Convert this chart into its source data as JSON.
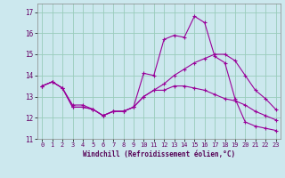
{
  "xlabel": "Windchill (Refroidissement éolien,°C)",
  "background_color": "#cce8ee",
  "grid_color": "#99ccbb",
  "line_color": "#990099",
  "ylim": [
    11,
    17.4
  ],
  "xlim": [
    -0.5,
    23.5
  ],
  "yticks": [
    11,
    12,
    13,
    14,
    15,
    16,
    17
  ],
  "xticks": [
    0,
    1,
    2,
    3,
    4,
    5,
    6,
    7,
    8,
    9,
    10,
    11,
    12,
    13,
    14,
    15,
    16,
    17,
    18,
    19,
    20,
    21,
    22,
    23
  ],
  "x": [
    0,
    1,
    2,
    3,
    4,
    5,
    6,
    7,
    8,
    9,
    10,
    11,
    12,
    13,
    14,
    15,
    16,
    17,
    18,
    19,
    20,
    21,
    22,
    23
  ],
  "line1": [
    13.5,
    13.7,
    13.4,
    12.5,
    12.5,
    12.4,
    12.1,
    12.3,
    12.3,
    12.5,
    14.1,
    14.0,
    15.7,
    15.9,
    15.8,
    16.8,
    16.5,
    14.9,
    14.6,
    12.9,
    11.8,
    11.6,
    11.5,
    11.4
  ],
  "line2": [
    13.5,
    13.7,
    13.4,
    12.6,
    12.6,
    12.4,
    12.1,
    12.3,
    12.3,
    12.5,
    13.0,
    13.3,
    13.6,
    14.0,
    14.3,
    14.6,
    14.8,
    15.0,
    15.0,
    14.7,
    14.0,
    13.3,
    12.9,
    12.4
  ],
  "line3": [
    13.5,
    13.7,
    13.4,
    12.5,
    12.5,
    12.4,
    12.1,
    12.3,
    12.3,
    12.5,
    13.0,
    13.3,
    13.3,
    13.5,
    13.5,
    13.4,
    13.3,
    13.1,
    12.9,
    12.8,
    12.6,
    12.3,
    12.1,
    11.9
  ]
}
